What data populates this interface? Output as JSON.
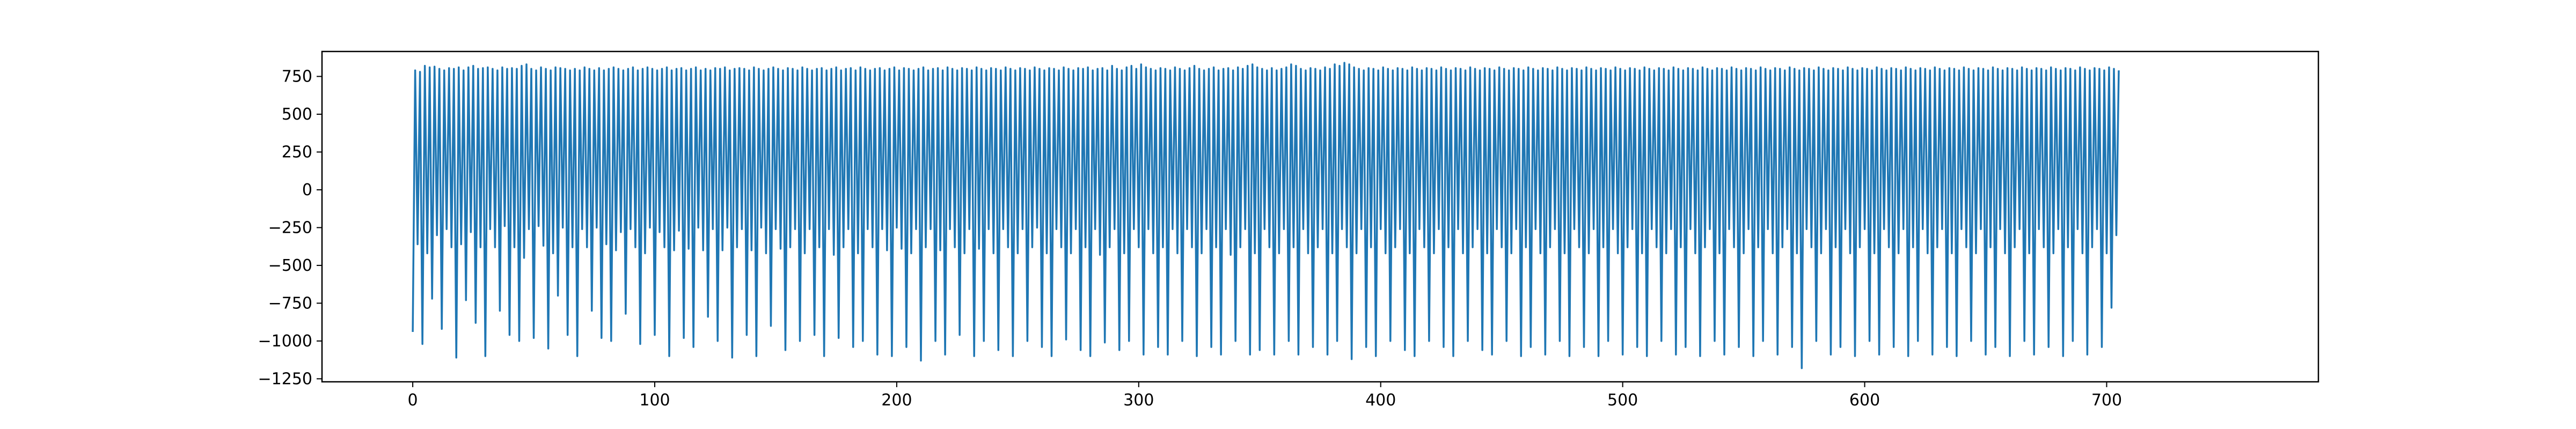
{
  "chart_data": {
    "type": "line",
    "title": "",
    "xlabel": "",
    "ylabel": "",
    "xlim": [
      -37.5,
      787.5
    ],
    "ylim": [
      -1270,
      915
    ],
    "x_ticks": [
      0,
      100,
      200,
      300,
      400,
      500,
      600,
      700
    ],
    "x_tick_labels": [
      "0",
      "100",
      "200",
      "300",
      "400",
      "500",
      "600",
      "700"
    ],
    "y_ticks": [
      -1250,
      -1000,
      -750,
      -500,
      -250,
      0,
      250,
      500,
      750
    ],
    "y_tick_labels": [
      "−1250",
      "−1000",
      "−750",
      "−500",
      "−250",
      "0",
      "250",
      "500",
      "750"
    ],
    "grid": false,
    "legend": "none",
    "colors": {
      "line": "#1f77b4",
      "background": "#ffffff",
      "axes": "#000000"
    },
    "series": [
      {
        "x_start": 0,
        "x_step": 1,
        "values": [
          -940,
          790,
          -360,
          780,
          -1020,
          820,
          -420,
          810,
          -720,
          815,
          -300,
          800,
          -920,
          790,
          -260,
          805,
          -380,
          800,
          -1110,
          810,
          -360,
          790,
          -730,
          810,
          -280,
          820,
          -880,
          800,
          -380,
          805,
          -1100,
          810,
          -260,
          800,
          -380,
          790,
          -800,
          810,
          -240,
          800,
          -960,
          805,
          -380,
          800,
          -1000,
          820,
          -450,
          830,
          -260,
          800,
          -980,
          790,
          -240,
          810,
          -370,
          800,
          -1050,
          790,
          -420,
          810,
          -700,
          805,
          -250,
          800,
          -960,
          790,
          -380,
          800,
          -1100,
          790,
          -260,
          810,
          -380,
          800,
          -800,
          790,
          -250,
          805,
          -980,
          790,
          -360,
          800,
          -1000,
          810,
          -400,
          800,
          -280,
          790,
          -820,
          800,
          -260,
          810,
          -380,
          790,
          -1020,
          800,
          -420,
          810,
          -250,
          800,
          -960,
          790,
          -280,
          800,
          -380,
          810,
          -1100,
          790,
          -400,
          800,
          -270,
          805,
          -980,
          790,
          -390,
          800,
          -1040,
          810,
          -250,
          790,
          -400,
          800,
          -840,
          790,
          -260,
          805,
          -1000,
          800,
          -400,
          810,
          -250,
          790,
          -1110,
          800,
          -380,
          805,
          -260,
          800,
          -960,
          790,
          -400,
          810,
          -1100,
          800,
          -250,
          790,
          -420,
          800,
          -900,
          810,
          -260,
          800,
          -390,
          790,
          -1060,
          805,
          -380,
          800,
          -260,
          790,
          -1000,
          810,
          -420,
          800,
          -260,
          790,
          -960,
          800,
          -380,
          805,
          -1100,
          790,
          -260,
          800,
          -430,
          810,
          -980,
          790,
          -380,
          800,
          -260,
          805,
          -1040,
          790,
          -420,
          810,
          -1000,
          800,
          -260,
          790,
          -380,
          800,
          -1090,
          805,
          -260,
          790,
          -400,
          800,
          -1100,
          810,
          -250,
          790,
          -390,
          805,
          -1040,
          800,
          -420,
          790,
          -260,
          800,
          -1130,
          810,
          -380,
          790,
          -260,
          800,
          -1000,
          805,
          -400,
          790,
          -1090,
          810,
          -260,
          800,
          -380,
          790,
          -960,
          805,
          -420,
          800,
          -260,
          790,
          -1100,
          810,
          -390,
          800,
          -1000,
          790,
          -260,
          805,
          -420,
          800,
          -1060,
          790,
          -260,
          810,
          -380,
          800,
          -1100,
          790,
          -420,
          805,
          -260,
          800,
          -1000,
          790,
          -380,
          810,
          -250,
          800,
          -1040,
          790,
          -420,
          805,
          -1100,
          800,
          -260,
          790,
          -380,
          810,
          -990,
          800,
          -420,
          790,
          -260,
          805,
          -1060,
          800,
          -380,
          810,
          -1100,
          790,
          -260,
          800,
          -430,
          805,
          -1010,
          790,
          -380,
          820,
          -260,
          800,
          -1060,
          790,
          -420,
          810,
          -1000,
          820,
          -260,
          800,
          -380,
          830,
          -1090,
          810,
          -260,
          800,
          -420,
          790,
          -1040,
          805,
          -380,
          800,
          -1090,
          790,
          -260,
          810,
          -420,
          800,
          -1000,
          790,
          -260,
          805,
          -380,
          820,
          -1100,
          800,
          -420,
          790,
          -260,
          800,
          -1040,
          810,
          -380,
          790,
          -1090,
          800,
          -260,
          805,
          -430,
          790,
          -1000,
          810,
          -380,
          800,
          -260,
          820,
          -1090,
          830,
          -420,
          810,
          -1060,
          800,
          -260,
          790,
          -380,
          805,
          -1090,
          790,
          -420,
          800,
          -260,
          810,
          -1000,
          830,
          -380,
          820,
          -1090,
          800,
          -260,
          790,
          -420,
          805,
          -1040,
          800,
          -380,
          790,
          -260,
          810,
          -1090,
          800,
          -420,
          830,
          -1000,
          820,
          -260,
          840,
          -380,
          830,
          -1120,
          810,
          -420,
          800,
          -260,
          790,
          -1040,
          805,
          -380,
          800,
          -1100,
          790,
          -260,
          810,
          -420,
          800,
          -1000,
          790,
          -380,
          805,
          -260,
          800,
          -1060,
          790,
          -420,
          810,
          -1100,
          800,
          -260,
          790,
          -380,
          805,
          -1000,
          800,
          -420,
          790,
          -260,
          810,
          -1040,
          800,
          -380,
          790,
          -1100,
          805,
          -260,
          800,
          -420,
          790,
          -1000,
          810,
          -380,
          800,
          -260,
          790,
          -1060,
          805,
          -420,
          800,
          -1090,
          790,
          -260,
          810,
          -380,
          800,
          -1000,
          790,
          -420,
          805,
          -260,
          800,
          -1100,
          790,
          -380,
          810,
          -1040,
          800,
          -260,
          790,
          -420,
          805,
          -1090,
          800,
          -380,
          790,
          -260,
          810,
          -1000,
          800,
          -420,
          790,
          -1100,
          805,
          -260,
          800,
          -380,
          790,
          -1040,
          810,
          -420,
          800,
          -260,
          790,
          -1100,
          805,
          -380,
          800,
          -1000,
          790,
          -260,
          810,
          -420,
          800,
          -1090,
          790,
          -380,
          805,
          -260,
          800,
          -1040,
          790,
          -420,
          810,
          -1100,
          800,
          -260,
          790,
          -380,
          805,
          -1000,
          800,
          -420,
          790,
          -260,
          810,
          -1090,
          800,
          -380,
          790,
          -1040,
          805,
          -260,
          800,
          -420,
          790,
          -1100,
          810,
          -380,
          800,
          -260,
          790,
          -1000,
          805,
          -420,
          800,
          -1090,
          790,
          -260,
          810,
          -380,
          800,
          -1040,
          790,
          -420,
          805,
          -260,
          800,
          -1100,
          790,
          -380,
          810,
          -1000,
          800,
          -260,
          790,
          -420,
          805,
          -1090,
          800,
          -380,
          790,
          -260,
          810,
          -1040,
          800,
          -420,
          790,
          -1180,
          805,
          -260,
          800,
          -380,
          790,
          -1000,
          810,
          -420,
          800,
          -260,
          790,
          -1090,
          805,
          -380,
          800,
          -1040,
          790,
          -260,
          810,
          -420,
          800,
          -1100,
          790,
          -380,
          805,
          -260,
          800,
          -1000,
          790,
          -420,
          810,
          -1090,
          800,
          -260,
          790,
          -380,
          805,
          -1040,
          800,
          -420,
          790,
          -260,
          810,
          -1100,
          800,
          -380,
          790,
          -1000,
          805,
          -260,
          800,
          -420,
          790,
          -1090,
          810,
          -380,
          800,
          -260,
          790,
          -1040,
          805,
          -420,
          800,
          -1100,
          790,
          -260,
          810,
          -380,
          800,
          -1000,
          790,
          -420,
          805,
          -260,
          800,
          -1090,
          790,
          -380,
          810,
          -1040,
          800,
          -260,
          790,
          -420,
          805,
          -1100,
          800,
          -380,
          790,
          -260,
          810,
          -1000,
          800,
          -420,
          790,
          -1090,
          805,
          -260,
          800,
          -380,
          790,
          -1040,
          810,
          -420,
          800,
          -260,
          790,
          -1100,
          805,
          -380,
          800,
          -1000,
          790,
          -260,
          810,
          -420,
          800,
          -1090,
          790,
          -380,
          805,
          -260,
          800,
          -1040,
          790,
          -420,
          810,
          -780,
          800,
          -300,
          790
        ]
      }
    ]
  }
}
